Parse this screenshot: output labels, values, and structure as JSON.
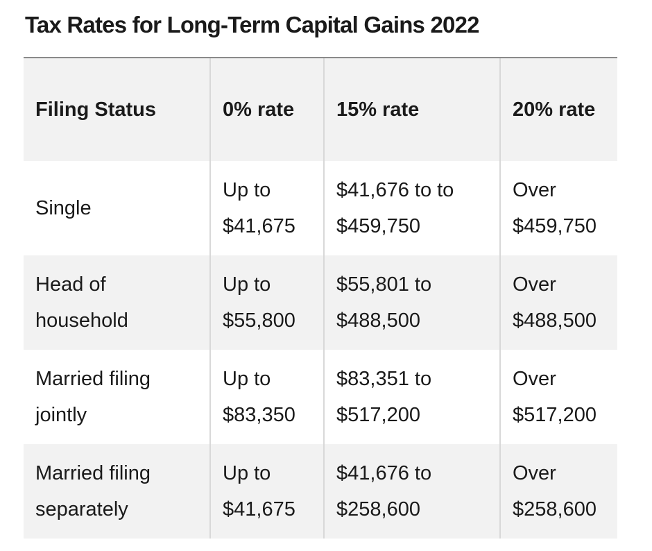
{
  "title": "Tax Rates for Long-Term Capital Gains 2022",
  "table": {
    "headers": [
      "Filing Status",
      "0% rate",
      "15% rate",
      "20% rate"
    ],
    "rows": [
      [
        "Single",
        "Up to $41,675",
        "$41,676 to to $459,750",
        "Over $459,750"
      ],
      [
        "Head of household",
        "Up to $55,800",
        "$55,801 to $488,500",
        "Over $488,500"
      ],
      [
        "Married filing jointly",
        "Up to $83,350",
        "$83,351 to $517,200",
        "Over $517,200"
      ],
      [
        "Married filing separately",
        "Up to $41,675",
        "$41,676 to $258,600",
        "Over $258,600"
      ]
    ]
  }
}
